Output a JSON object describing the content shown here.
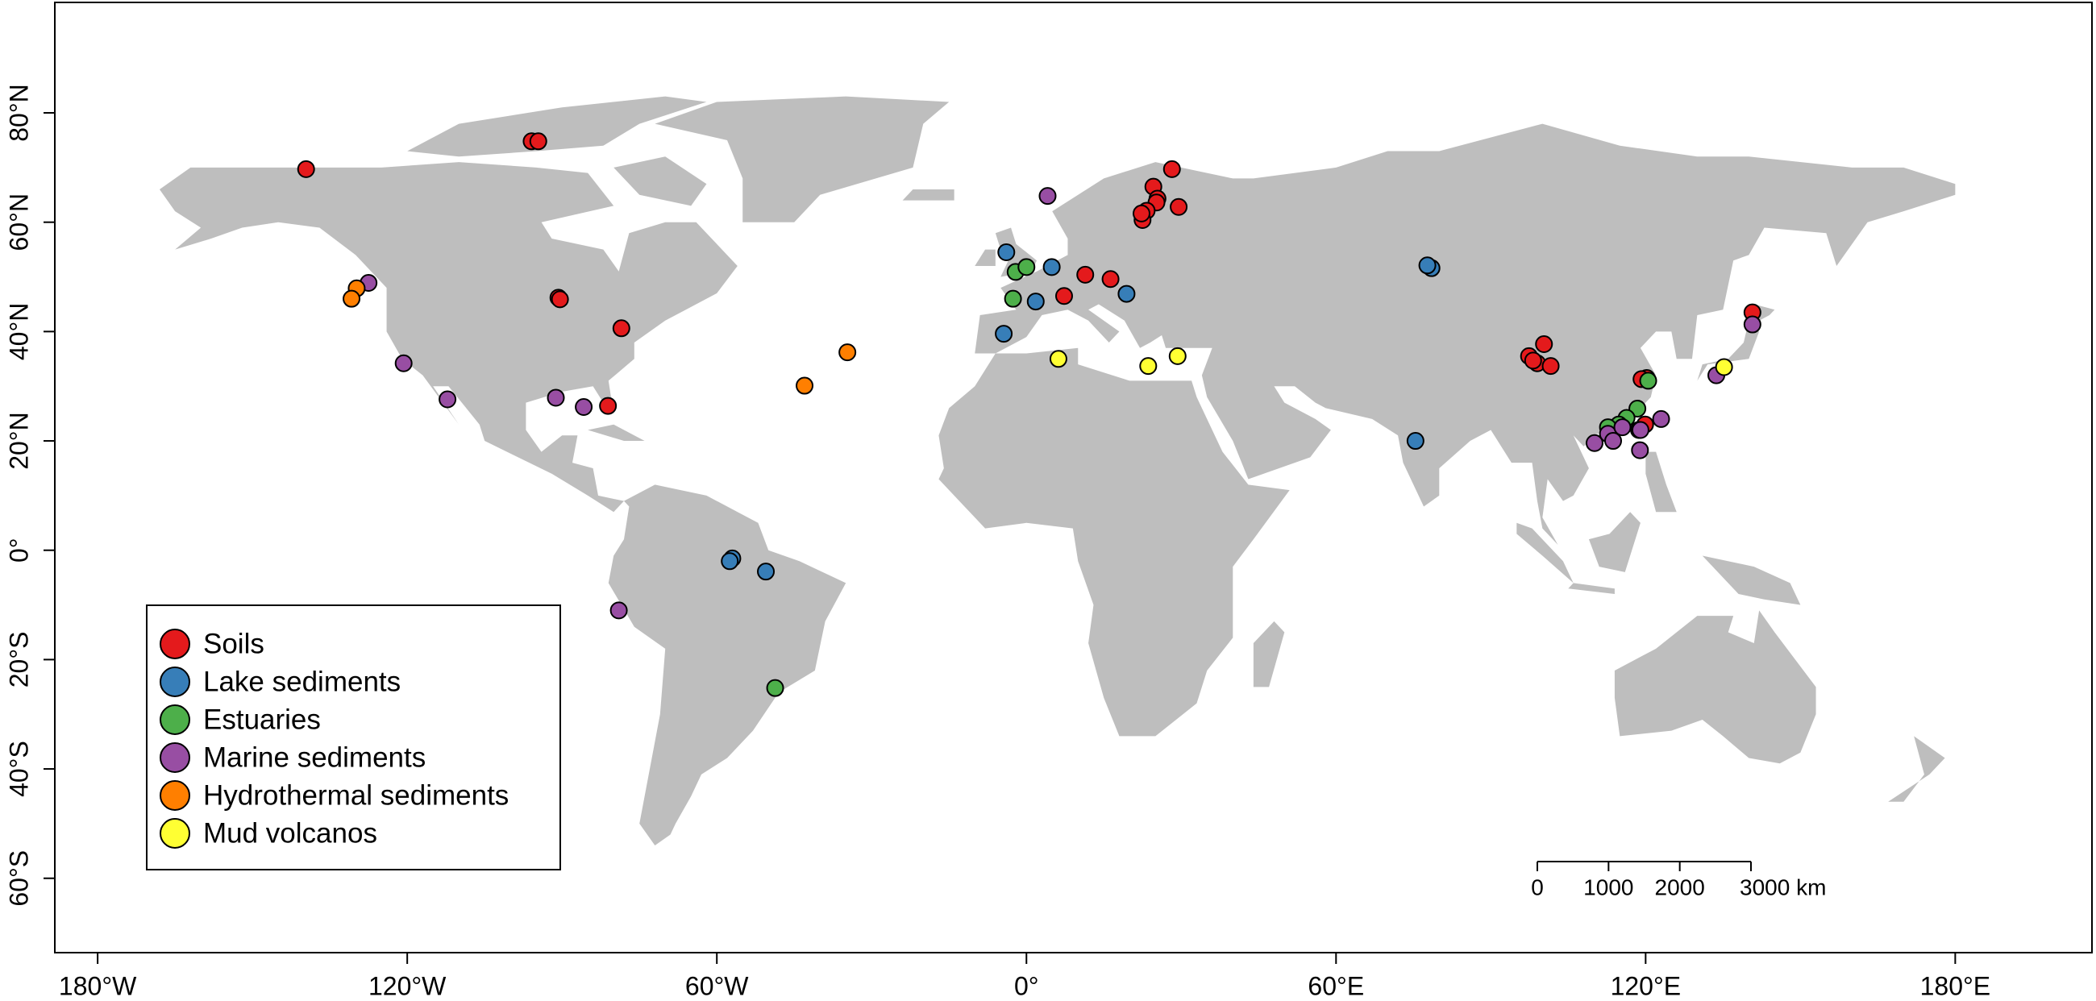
{
  "chart_data": {
    "type": "scatter",
    "xlim": [
      -188.3,
      206.5
    ],
    "ylim": [
      -73.6,
      100.2
    ],
    "xticks": [
      {
        "value": -180,
        "label": "180°W"
      },
      {
        "value": -120,
        "label": "120°W"
      },
      {
        "value": -60,
        "label": "60°W"
      },
      {
        "value": 0,
        "label": "0°"
      },
      {
        "value": 60,
        "label": "60°E"
      },
      {
        "value": 120,
        "label": "120°E"
      },
      {
        "value": 180,
        "label": "180°E"
      }
    ],
    "yticks": [
      {
        "value": 80,
        "label": "80°N"
      },
      {
        "value": 60,
        "label": "60°N"
      },
      {
        "value": 40,
        "label": "40°N"
      },
      {
        "value": 20,
        "label": "20°N"
      },
      {
        "value": 0,
        "label": "0°"
      },
      {
        "value": -20,
        "label": "20°S"
      },
      {
        "value": -40,
        "label": "40°S"
      },
      {
        "value": -60,
        "label": "60°S"
      }
    ],
    "legend": "bottom-left",
    "series": [
      {
        "name": "Soils",
        "color": "#e41a1c",
        "x": [
          -139.6,
          -95.9,
          -94.6,
          -90.7,
          -90.4,
          -78.5,
          -81.1,
          24.6,
          28.2,
          25.4,
          25.2,
          23.3,
          22.5,
          29.5,
          22.3,
          11.4,
          16.3,
          7.3,
          100.3,
          97.4,
          99.0,
          101.6,
          98.2,
          120.2,
          119.2,
          119.9,
          140.7
        ],
        "y": [
          69.7,
          74.8,
          74.8,
          46.2,
          45.9,
          40.6,
          26.4,
          66.5,
          69.7,
          64.3,
          63.6,
          62.1,
          60.4,
          62.8,
          61.6,
          50.4,
          49.6,
          46.5,
          37.7,
          35.5,
          34.2,
          33.7,
          34.7,
          31.5,
          31.3,
          23.0,
          43.5
        ]
      },
      {
        "name": "Lake sediments",
        "color": "#377eb8",
        "x": [
          -57.0,
          -57.5,
          -50.5,
          -3.9,
          4.9,
          1.8,
          -4.4,
          19.4,
          78.5,
          77.7,
          75.4
        ],
        "y": [
          -1.5,
          -2.0,
          -3.9,
          54.5,
          51.8,
          45.5,
          39.6,
          46.9,
          51.6,
          52.1,
          20.0
        ]
      },
      {
        "name": "Estuaries",
        "color": "#4daf4a",
        "x": [
          -48.7,
          -2.1,
          0.0,
          -2.6,
          118.4,
          116.3,
          114.8,
          120.5,
          112.7
        ],
        "y": [
          -25.2,
          50.9,
          51.8,
          46.0,
          25.9,
          24.2,
          23.0,
          31.0,
          22.5
        ]
      },
      {
        "name": "Marine sediments",
        "color": "#984ea3",
        "x": [
          4.1,
          -127.5,
          -120.7,
          -112.2,
          -91.2,
          -85.8,
          -79.0,
          140.7,
          133.7,
          110.1,
          112.7,
          113.7,
          115.5,
          118.7,
          118.9,
          123.0,
          119.0
        ],
        "y": [
          64.8,
          48.9,
          34.2,
          27.6,
          27.9,
          26.2,
          -11.0,
          41.3,
          32.0,
          19.6,
          21.3,
          20.0,
          22.5,
          22.0,
          18.3,
          24.0,
          22.0
        ]
      },
      {
        "name": "Hydrothermal sediments",
        "color": "#ff7f00",
        "x": [
          -129.8,
          -130.8,
          -43.0,
          -34.7
        ],
        "y": [
          47.9,
          46.0,
          30.1,
          36.2
        ]
      },
      {
        "name": "Mud volcanos",
        "color": "#ffff33",
        "x": [
          6.2,
          23.6,
          29.3,
          135.2
        ],
        "y": [
          35.0,
          33.7,
          35.5,
          33.5
        ]
      }
    ],
    "scale_bar": {
      "ticks": [
        0,
        1000,
        2000,
        {
          "value": 3000,
          "label": "3000 km"
        }
      ]
    }
  }
}
